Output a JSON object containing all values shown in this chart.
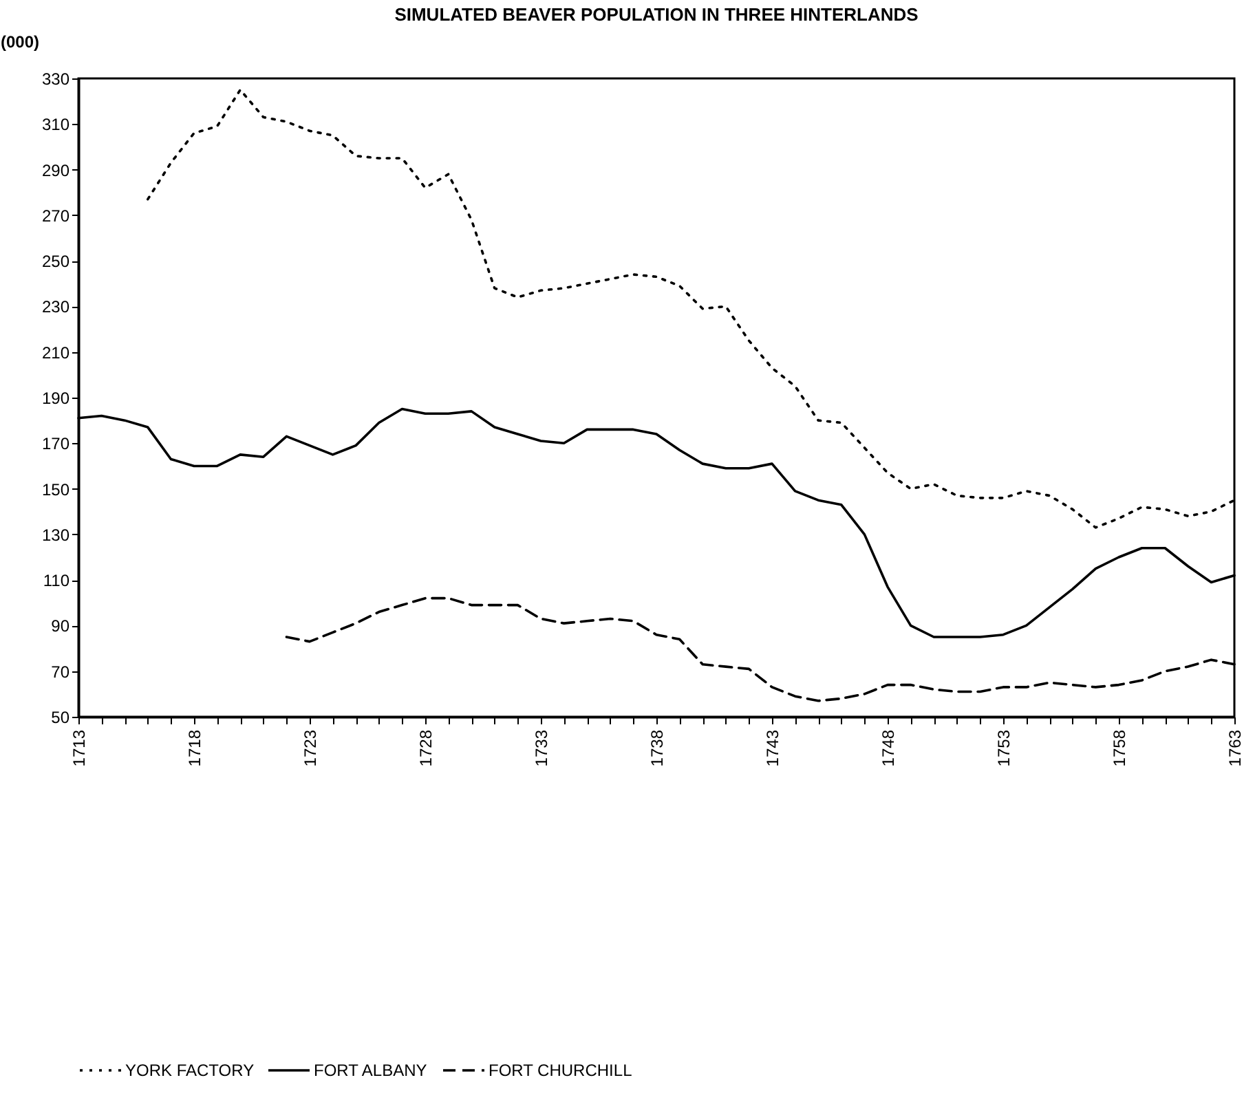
{
  "chart_data": {
    "type": "line",
    "title": "SIMULATED BEAVER POPULATION IN THREE HINTERLANDS",
    "ylabel": "(000)",
    "x": [
      1713,
      1714,
      1715,
      1716,
      1717,
      1718,
      1719,
      1720,
      1721,
      1722,
      1723,
      1724,
      1725,
      1726,
      1727,
      1728,
      1729,
      1730,
      1731,
      1732,
      1733,
      1734,
      1735,
      1736,
      1737,
      1738,
      1739,
      1740,
      1741,
      1742,
      1743,
      1744,
      1745,
      1746,
      1747,
      1748,
      1749,
      1750,
      1751,
      1752,
      1753,
      1754,
      1755,
      1756,
      1757,
      1758,
      1759,
      1760,
      1761,
      1762,
      1763
    ],
    "series": [
      {
        "name": "YORK FACTORY",
        "color": "#000000",
        "line_style": "dotted",
        "values": [
          null,
          null,
          null,
          277,
          293,
          306,
          309,
          325,
          313,
          311,
          307,
          305,
          296,
          295,
          295,
          282,
          288,
          268,
          238,
          234,
          237,
          238,
          240,
          242,
          244,
          243,
          239,
          229,
          230,
          215,
          203,
          195,
          180,
          179,
          168,
          157,
          150,
          152,
          147,
          146,
          146,
          149,
          147,
          141,
          133,
          137,
          142,
          141,
          138,
          140,
          145
        ]
      },
      {
        "name": "FORT ALBANY",
        "color": "#000000",
        "line_style": "solid",
        "values": [
          181,
          182,
          180,
          177,
          163,
          160,
          160,
          165,
          164,
          173,
          169,
          165,
          169,
          179,
          185,
          183,
          183,
          184,
          177,
          174,
          171,
          170,
          176,
          176,
          176,
          174,
          167,
          161,
          159,
          159,
          161,
          149,
          145,
          143,
          130,
          107,
          90,
          85,
          85,
          85,
          86,
          90,
          98,
          106,
          115,
          120,
          124,
          124,
          116,
          109,
          112
        ]
      },
      {
        "name": "FORT CHURCHILL",
        "color": "#000000",
        "line_style": "dashed",
        "values": [
          null,
          null,
          null,
          null,
          null,
          null,
          null,
          null,
          null,
          85,
          83,
          87,
          91,
          96,
          99,
          102,
          102,
          99,
          99,
          99,
          93,
          91,
          92,
          93,
          92,
          86,
          84,
          73,
          72,
          71,
          63,
          59,
          57,
          58,
          60,
          64,
          64,
          62,
          61,
          61,
          63,
          63,
          65,
          64,
          63,
          64,
          66,
          70,
          72,
          75,
          73
        ]
      }
    ],
    "xlim": [
      1713,
      1763
    ],
    "xticks": [
      1713,
      {
        "value": 1714,
        "label": null
      },
      {
        "value": 1715,
        "label": null
      },
      {
        "value": 1716,
        "label": null
      },
      {
        "value": 1717,
        "label": null
      },
      1718,
      {
        "value": 1719,
        "label": null
      },
      {
        "value": 1720,
        "label": null
      },
      {
        "value": 1721,
        "label": null
      },
      {
        "value": 1722,
        "label": null
      },
      1723,
      {
        "value": 1724,
        "label": null
      },
      {
        "value": 1725,
        "label": null
      },
      {
        "value": 1726,
        "label": null
      },
      {
        "value": 1727,
        "label": null
      },
      1728,
      {
        "value": 1729,
        "label": null
      },
      {
        "value": 1730,
        "label": null
      },
      {
        "value": 1731,
        "label": null
      },
      {
        "value": 1732,
        "label": null
      },
      1733,
      {
        "value": 1734,
        "label": null
      },
      {
        "value": 1735,
        "label": null
      },
      {
        "value": 1736,
        "label": null
      },
      {
        "value": 1737,
        "label": null
      },
      1738,
      {
        "value": 1739,
        "label": null
      },
      {
        "value": 1740,
        "label": null
      },
      {
        "value": 1741,
        "label": null
      },
      {
        "value": 1742,
        "label": null
      },
      1743,
      {
        "value": 1744,
        "label": null
      },
      {
        "value": 1745,
        "label": null
      },
      {
        "value": 1746,
        "label": null
      },
      {
        "value": 1747,
        "label": null
      },
      1748,
      {
        "value": 1749,
        "label": null
      },
      {
        "value": 1750,
        "label": null
      },
      {
        "value": 1751,
        "label": null
      },
      {
        "value": 1752,
        "label": null
      },
      1753,
      {
        "value": 1754,
        "label": null
      },
      {
        "value": 1755,
        "label": null
      },
      {
        "value": 1756,
        "label": null
      },
      {
        "value": 1757,
        "label": null
      },
      1758,
      {
        "value": 1759,
        "label": null
      },
      {
        "value": 1760,
        "label": null
      },
      {
        "value": 1761,
        "label": null
      },
      {
        "value": 1762,
        "label": null
      },
      1763
    ],
    "ylim": [
      50,
      330
    ],
    "yticks": [
      50,
      70,
      90,
      110,
      130,
      150,
      170,
      190,
      210,
      230,
      250,
      270,
      290,
      310,
      330
    ],
    "grid": false,
    "legend": "bottom"
  }
}
